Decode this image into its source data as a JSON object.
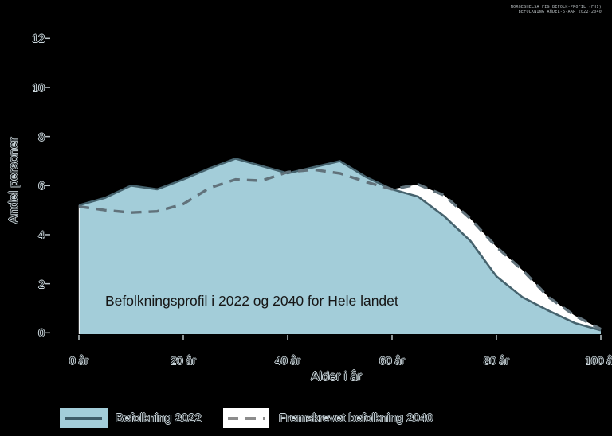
{
  "watermark": {
    "line1": "NORGESHELSA FIG_BEFOLK-PROFIL (FHI)",
    "line2": "BEFOLKNING_ANDEL-5-AAR 2022-2040"
  },
  "colors": {
    "background": "#000000",
    "area_2022_fill": "#a3cdd9",
    "line_2022": "#46636e",
    "area_2040_fill": "#ffffff",
    "line_2040_dash": "#61727b",
    "legend_dash": "#8c8c8c",
    "legend_solid_line": "#3f5d69",
    "tick_mark": "#b9c2c6"
  },
  "chart_data": {
    "type": "area",
    "title": "Befolkningsprofil i 2022 og 2040 for Hele landet",
    "xlabel": "Alder i år",
    "ylabel": "Andel personer",
    "xlim": [
      0,
      100
    ],
    "ylim": [
      0,
      12
    ],
    "grid": false,
    "legend_position": "bottom",
    "x": [
      0,
      5,
      10,
      15,
      20,
      25,
      30,
      35,
      40,
      45,
      50,
      55,
      60,
      65,
      70,
      75,
      80,
      85,
      90,
      95,
      100
    ],
    "series": [
      {
        "name": "Befolkning 2022",
        "style": "solid-line-filled-area",
        "values": [
          5.2,
          5.5,
          6.0,
          5.85,
          6.25,
          6.7,
          7.1,
          6.8,
          6.5,
          6.75,
          7.0,
          6.35,
          5.85,
          5.55,
          4.75,
          3.75,
          2.3,
          1.45,
          0.9,
          0.4,
          0.1
        ]
      },
      {
        "name": "Fremskrevet befolkning 2040",
        "style": "dashed-line-white-area",
        "values": [
          5.15,
          5.0,
          4.9,
          4.95,
          5.25,
          5.9,
          6.25,
          6.2,
          6.55,
          6.65,
          6.5,
          6.15,
          5.85,
          6.05,
          5.6,
          4.65,
          3.5,
          2.55,
          1.45,
          0.7,
          0.15
        ]
      }
    ],
    "x_ticks": [
      {
        "age": 0,
        "label": "0 år"
      },
      {
        "age": 20,
        "label": "20 år"
      },
      {
        "age": 40,
        "label": "40 år"
      },
      {
        "age": 60,
        "label": "60 år"
      },
      {
        "age": 80,
        "label": "80 år"
      },
      {
        "age": 100,
        "label": "100 år"
      }
    ],
    "y_ticks": [
      {
        "v": 0,
        "label": "0"
      },
      {
        "v": 2,
        "label": "2"
      },
      {
        "v": 4,
        "label": "4"
      },
      {
        "v": 6,
        "label": "6"
      },
      {
        "v": 8,
        "label": "8"
      },
      {
        "v": 10,
        "label": "10"
      },
      {
        "v": 12,
        "label": "12"
      }
    ]
  }
}
